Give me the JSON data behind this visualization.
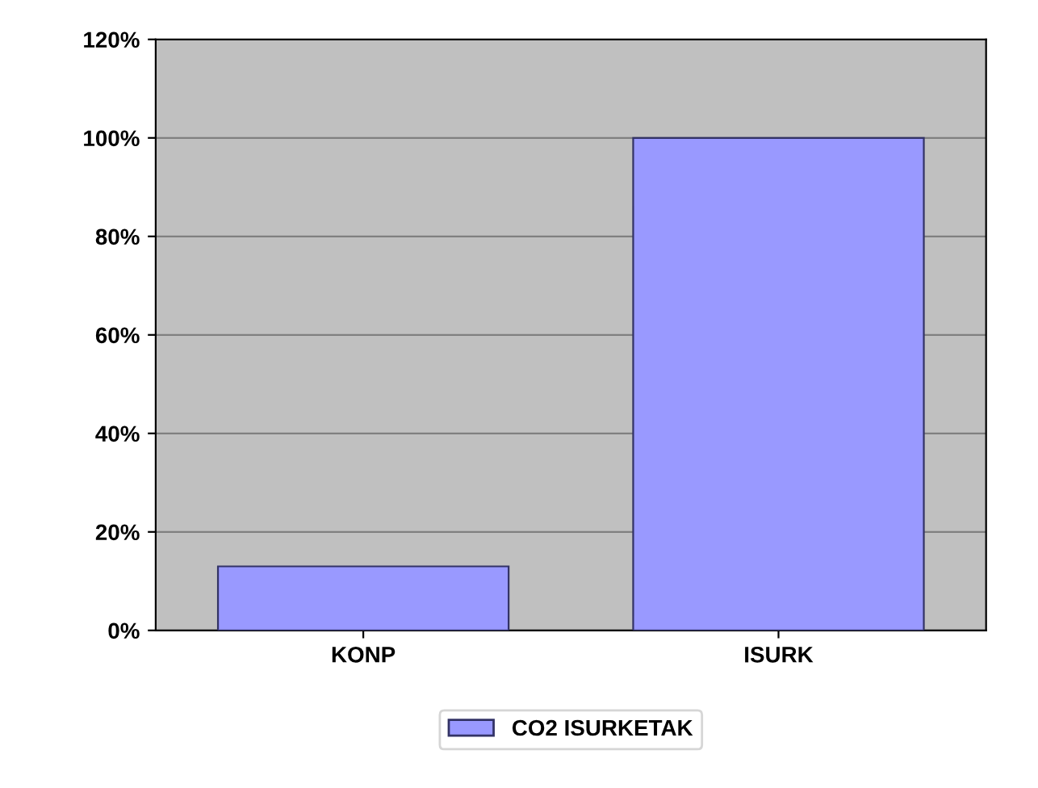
{
  "chart_data": {
    "type": "bar",
    "categories": [
      "KONP",
      "ISURK"
    ],
    "series": [
      {
        "name": "CO2 ISURKETAK",
        "color": "#9999ff",
        "values": [
          13,
          100
        ]
      }
    ],
    "ylim": [
      0,
      120
    ],
    "yticks": [
      {
        "value": 0,
        "label": "0%"
      },
      {
        "value": 20,
        "label": "20%"
      },
      {
        "value": 40,
        "label": "40%"
      },
      {
        "value": 60,
        "label": "60%"
      },
      {
        "value": 80,
        "label": "80%"
      },
      {
        "value": 100,
        "label": "100%"
      },
      {
        "value": 120,
        "label": "120%"
      }
    ],
    "grid": "y",
    "legend": "bottom"
  }
}
